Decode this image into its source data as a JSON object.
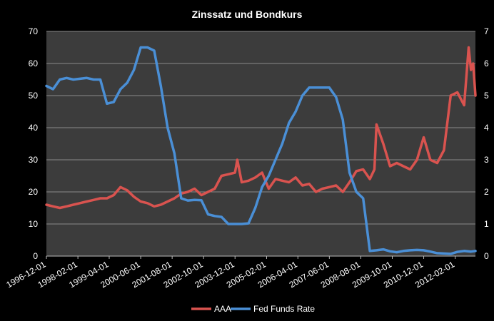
{
  "chart_data": {
    "type": "line",
    "title": "Zinssatz und Bondkurs",
    "xlabel": "",
    "ylabel": "",
    "x_ticks": [
      "1996-12-01",
      "1998-02-01",
      "1999-04-01",
      "2000-06-01",
      "2001-08-01",
      "2002-10-01",
      "2003-12-01",
      "2005-02-01",
      "2006-04-01",
      "2007-06-01",
      "2008-08-01",
      "2009-10-01",
      "2010-12-01",
      "2012-02-01"
    ],
    "x_range": [
      "1996-12-01",
      "2012-11-01"
    ],
    "y_left": {
      "range": [
        0,
        70
      ],
      "ticks": [
        0,
        10,
        20,
        30,
        40,
        50,
        60,
        70
      ]
    },
    "y_right": {
      "range": [
        0,
        7
      ],
      "ticks": [
        0,
        1,
        2,
        3,
        4,
        5,
        6,
        7
      ]
    },
    "legend": "bottom",
    "grid": true,
    "colors": {
      "aaa": "#D9534F",
      "fed": "#4A8FD6",
      "plot_bg": "#3C3C3C",
      "grid": "#8A8A8A"
    },
    "series": [
      {
        "name": "AAA",
        "axis": "left",
        "color": "#D9534F",
        "points": [
          [
            "1996-12-01",
            16
          ],
          [
            "1997-03-01",
            15.5
          ],
          [
            "1997-06-01",
            15
          ],
          [
            "1997-09-01",
            15.5
          ],
          [
            "1997-12-01",
            16
          ],
          [
            "1998-03-01",
            16.5
          ],
          [
            "1998-06-01",
            17
          ],
          [
            "1998-09-01",
            17.5
          ],
          [
            "1998-12-01",
            18
          ],
          [
            "1999-03-01",
            18
          ],
          [
            "1999-06-01",
            19
          ],
          [
            "1999-09-01",
            21.5
          ],
          [
            "1999-12-01",
            20.5
          ],
          [
            "2000-03-01",
            18.5
          ],
          [
            "2000-06-01",
            17
          ],
          [
            "2000-09-01",
            16.5
          ],
          [
            "2000-12-01",
            15.5
          ],
          [
            "2001-03-01",
            16
          ],
          [
            "2001-06-01",
            17
          ],
          [
            "2001-09-01",
            18
          ],
          [
            "2001-12-01",
            19.5
          ],
          [
            "2002-03-01",
            20
          ],
          [
            "2002-06-01",
            21
          ],
          [
            "2002-09-01",
            19
          ],
          [
            "2002-12-01",
            20
          ],
          [
            "2003-03-01",
            21
          ],
          [
            "2003-06-01",
            25
          ],
          [
            "2003-09-01",
            25.5
          ],
          [
            "2003-12-01",
            26
          ],
          [
            "2004-01-01",
            30
          ],
          [
            "2004-03-01",
            23
          ],
          [
            "2004-06-01",
            23.5
          ],
          [
            "2004-09-01",
            24.5
          ],
          [
            "2004-12-01",
            26
          ],
          [
            "2005-03-01",
            21
          ],
          [
            "2005-06-01",
            24
          ],
          [
            "2005-09-01",
            23.5
          ],
          [
            "2005-12-01",
            23
          ],
          [
            "2006-03-01",
            24.5
          ],
          [
            "2006-06-01",
            22
          ],
          [
            "2006-09-01",
            22.5
          ],
          [
            "2006-12-01",
            20
          ],
          [
            "2007-03-01",
            21
          ],
          [
            "2007-06-01",
            21.5
          ],
          [
            "2007-09-01",
            22
          ],
          [
            "2007-12-01",
            20
          ],
          [
            "2008-03-01",
            23
          ],
          [
            "2008-06-01",
            26.5
          ],
          [
            "2008-09-01",
            27
          ],
          [
            "2008-12-01",
            24
          ],
          [
            "2009-02-01",
            27
          ],
          [
            "2009-03-01",
            41
          ],
          [
            "2009-06-01",
            35
          ],
          [
            "2009-09-01",
            28
          ],
          [
            "2009-12-01",
            29
          ],
          [
            "2010-03-01",
            28
          ],
          [
            "2010-06-01",
            27
          ],
          [
            "2010-09-01",
            30
          ],
          [
            "2010-12-01",
            37
          ],
          [
            "2011-03-01",
            30
          ],
          [
            "2011-06-01",
            29
          ],
          [
            "2011-09-01",
            33
          ],
          [
            "2011-12-01",
            50
          ],
          [
            "2012-03-01",
            51
          ],
          [
            "2012-06-01",
            47
          ],
          [
            "2012-08-01",
            65
          ],
          [
            "2012-09-01",
            58
          ],
          [
            "2012-10-01",
            60
          ],
          [
            "2012-11-01",
            50
          ]
        ]
      },
      {
        "name": "Fed Funds Rate",
        "axis": "right",
        "color": "#4A8FD6",
        "points": [
          [
            "1996-12-01",
            5.3
          ],
          [
            "1997-03-01",
            5.2
          ],
          [
            "1997-06-01",
            5.5
          ],
          [
            "1997-09-01",
            5.55
          ],
          [
            "1997-12-01",
            5.5
          ],
          [
            "1998-06-01",
            5.55
          ],
          [
            "1998-09-01",
            5.5
          ],
          [
            "1998-12-01",
            5.5
          ],
          [
            "1999-03-01",
            4.75
          ],
          [
            "1999-06-01",
            4.8
          ],
          [
            "1999-09-01",
            5.2
          ],
          [
            "1999-12-01",
            5.4
          ],
          [
            "2000-03-01",
            5.8
          ],
          [
            "2000-06-01",
            6.5
          ],
          [
            "2000-09-01",
            6.5
          ],
          [
            "2000-12-01",
            6.4
          ],
          [
            "2001-03-01",
            5.3
          ],
          [
            "2001-06-01",
            4.0
          ],
          [
            "2001-09-01",
            3.2
          ],
          [
            "2001-12-01",
            1.8
          ],
          [
            "2002-03-01",
            1.73
          ],
          [
            "2002-06-01",
            1.75
          ],
          [
            "2002-09-01",
            1.74
          ],
          [
            "2002-12-01",
            1.3
          ],
          [
            "2003-03-01",
            1.25
          ],
          [
            "2003-06-01",
            1.22
          ],
          [
            "2003-09-01",
            1.0
          ],
          [
            "2003-12-01",
            1.0
          ],
          [
            "2004-03-01",
            1.0
          ],
          [
            "2004-06-01",
            1.02
          ],
          [
            "2004-09-01",
            1.5
          ],
          [
            "2004-12-01",
            2.15
          ],
          [
            "2005-03-01",
            2.5
          ],
          [
            "2005-06-01",
            3.0
          ],
          [
            "2005-09-01",
            3.5
          ],
          [
            "2005-12-01",
            4.15
          ],
          [
            "2006-03-01",
            4.5
          ],
          [
            "2006-06-01",
            5.0
          ],
          [
            "2006-09-01",
            5.25
          ],
          [
            "2006-12-01",
            5.25
          ],
          [
            "2007-03-01",
            5.25
          ],
          [
            "2007-06-01",
            5.25
          ],
          [
            "2007-09-01",
            4.95
          ],
          [
            "2007-12-01",
            4.25
          ],
          [
            "2008-03-01",
            2.6
          ],
          [
            "2008-06-01",
            2.0
          ],
          [
            "2008-09-01",
            1.8
          ],
          [
            "2008-12-01",
            0.16
          ],
          [
            "2009-03-01",
            0.18
          ],
          [
            "2009-06-01",
            0.21
          ],
          [
            "2009-09-01",
            0.15
          ],
          [
            "2009-12-01",
            0.12
          ],
          [
            "2010-03-01",
            0.16
          ],
          [
            "2010-06-01",
            0.18
          ],
          [
            "2010-09-01",
            0.19
          ],
          [
            "2010-12-01",
            0.18
          ],
          [
            "2011-03-01",
            0.14
          ],
          [
            "2011-06-01",
            0.09
          ],
          [
            "2011-09-01",
            0.08
          ],
          [
            "2011-12-01",
            0.07
          ],
          [
            "2012-03-01",
            0.13
          ],
          [
            "2012-06-01",
            0.16
          ],
          [
            "2012-09-01",
            0.14
          ],
          [
            "2012-11-01",
            0.16
          ]
        ]
      }
    ]
  }
}
